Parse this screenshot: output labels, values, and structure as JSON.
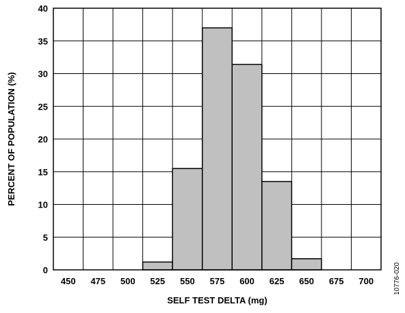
{
  "chart_data": {
    "type": "bar",
    "title": "",
    "xlabel": "SELF TEST DELTA (mg)",
    "ylabel": "PERCENT OF POPULATION (%)",
    "categories": [
      "450",
      "475",
      "500",
      "525",
      "550",
      "575",
      "600",
      "625",
      "650",
      "675",
      "700"
    ],
    "values": [
      0,
      0,
      0,
      1.2,
      15.5,
      37.0,
      31.4,
      13.5,
      1.7,
      0,
      0
    ],
    "ylim": [
      0,
      40
    ],
    "yticks": [
      0,
      5,
      10,
      15,
      20,
      25,
      30,
      35,
      40
    ],
    "grid": true,
    "legend": "none",
    "bar_color": "#c0c0c0",
    "bar_edge_color": "#000000"
  },
  "figure_id": "10776-020"
}
